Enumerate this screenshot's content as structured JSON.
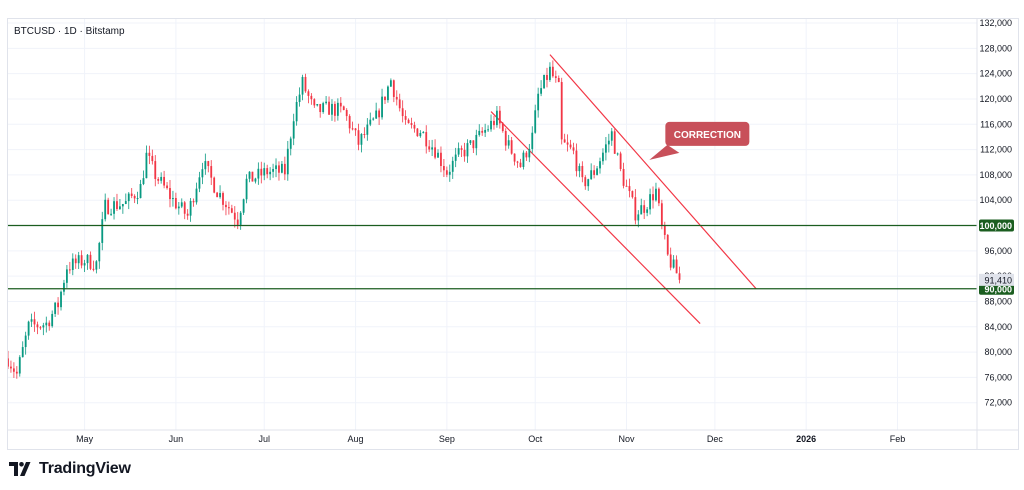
{
  "symbol": {
    "title": "BTCUSD · 1D · Bitstamp"
  },
  "branding": {
    "name": "TradingView"
  },
  "chart_data": {
    "type": "candlestick",
    "price_axis": {
      "min": 68000,
      "max": 132000,
      "ticks": [
        72000,
        76000,
        80000,
        84000,
        88000,
        92000,
        96000,
        100000,
        104000,
        108000,
        112000,
        116000,
        120000,
        124000,
        128000,
        132000
      ],
      "tick_labels": [
        "72,000",
        "76,000",
        "80,000",
        "84,000",
        "88,000",
        "92,000",
        "96,000",
        "100,000",
        "104,000",
        "108,000",
        "112,000",
        "116,000",
        "120,000",
        "124,000",
        "128,000",
        "132,000"
      ]
    },
    "time_axis": {
      "start": "2025-04-05",
      "end": "2026-02-28",
      "ticks": [
        {
          "date": "2025-05-01",
          "label": "May",
          "bold": false
        },
        {
          "date": "2025-06-01",
          "label": "Jun",
          "bold": false
        },
        {
          "date": "2025-07-01",
          "label": "Jul",
          "bold": false
        },
        {
          "date": "2025-08-01",
          "label": "Aug",
          "bold": false
        },
        {
          "date": "2025-09-01",
          "label": "Sep",
          "bold": false
        },
        {
          "date": "2025-10-01",
          "label": "Oct",
          "bold": false
        },
        {
          "date": "2025-11-01",
          "label": "Nov",
          "bold": false
        },
        {
          "date": "2025-12-01",
          "label": "Dec",
          "bold": false
        },
        {
          "date": "2026-01-01",
          "label": "2026",
          "bold": true
        },
        {
          "date": "2026-02-01",
          "label": "Feb",
          "bold": false
        }
      ]
    },
    "close_path": [
      [
        "2025-04-05",
        79000
      ],
      [
        "2025-04-08",
        76500
      ],
      [
        "2025-04-12",
        84000
      ],
      [
        "2025-04-18",
        84500
      ],
      [
        "2025-04-22",
        87500
      ],
      [
        "2025-04-25",
        93500
      ],
      [
        "2025-05-01",
        94500
      ],
      [
        "2025-05-05",
        94000
      ],
      [
        "2025-05-08",
        103000
      ],
      [
        "2025-05-15",
        103500
      ],
      [
        "2025-05-20",
        106000
      ],
      [
        "2025-05-22",
        111000
      ],
      [
        "2025-05-25",
        108000
      ],
      [
        "2025-05-31",
        104000
      ],
      [
        "2025-06-05",
        101500
      ],
      [
        "2025-06-10",
        110000
      ],
      [
        "2025-06-15",
        105500
      ],
      [
        "2025-06-22",
        101000
      ],
      [
        "2025-06-25",
        107000
      ],
      [
        "2025-07-02",
        108500
      ],
      [
        "2025-07-08",
        108500
      ],
      [
        "2025-07-11",
        117500
      ],
      [
        "2025-07-14",
        122500
      ],
      [
        "2025-07-18",
        118000
      ],
      [
        "2025-07-23",
        118500
      ],
      [
        "2025-07-28",
        118000
      ],
      [
        "2025-08-02",
        113000
      ],
      [
        "2025-08-08",
        117000
      ],
      [
        "2025-08-13",
        123000
      ],
      [
        "2025-08-18",
        115500
      ],
      [
        "2025-08-23",
        115000
      ],
      [
        "2025-08-28",
        112000
      ],
      [
        "2025-09-01",
        108500
      ],
      [
        "2025-09-05",
        111000
      ],
      [
        "2025-09-10",
        113000
      ],
      [
        "2025-09-15",
        115500
      ],
      [
        "2025-09-18",
        117000
      ],
      [
        "2025-09-22",
        112500
      ],
      [
        "2025-09-26",
        109500
      ],
      [
        "2025-09-30",
        114000
      ],
      [
        "2025-10-02",
        120500
      ],
      [
        "2025-10-06",
        124500
      ],
      [
        "2025-10-09",
        121500
      ],
      [
        "2025-10-10",
        113000
      ],
      [
        "2025-10-14",
        111500
      ],
      [
        "2025-10-17",
        106500
      ],
      [
        "2025-10-21",
        108500
      ],
      [
        "2025-10-27",
        114500
      ],
      [
        "2025-10-30",
        108500
      ],
      [
        "2025-11-04",
        102000
      ],
      [
        "2025-11-07",
        103000
      ],
      [
        "2025-11-11",
        105500
      ],
      [
        "2025-11-13",
        99500
      ],
      [
        "2025-11-15",
        95000
      ],
      [
        "2025-11-18",
        92500
      ],
      [
        "2025-11-19",
        91410
      ]
    ],
    "horizontal_levels": [
      {
        "value": 100000,
        "label": "100,000",
        "color": "#1b5e20"
      },
      {
        "value": 90000,
        "label": "90,000",
        "color": "#1b5e20"
      }
    ],
    "last_price": {
      "value": 91410,
      "label": "91,410"
    },
    "channel": {
      "color": "#f23645",
      "upper": [
        [
          "2025-10-06",
          127000
        ],
        [
          "2025-12-15",
          90000
        ]
      ],
      "lower": [
        [
          "2025-09-16",
          118000
        ],
        [
          "2025-11-26",
          84500
        ]
      ]
    },
    "annotation": {
      "text": "CORRECTION",
      "date": "2025-11-04",
      "price": 114000,
      "color": "#c8505a"
    },
    "colors": {
      "up": "#089981",
      "down": "#f23645",
      "grid": "#f0f3fa",
      "axis_text": "#131722"
    }
  }
}
